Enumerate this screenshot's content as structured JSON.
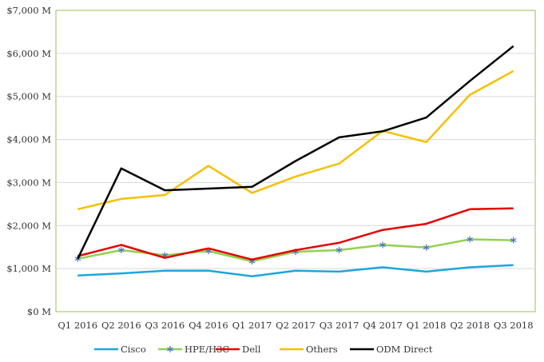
{
  "chart_data": {
    "type": "line",
    "categories": [
      "Q1 2016",
      "Q2 2016",
      "Q3 2016",
      "Q4 2016",
      "Q1 2017",
      "Q2 2017",
      "Q3 2017",
      "Q4 2017",
      "Q1 2018",
      "Q2 2018",
      "Q3 2018"
    ],
    "y_ticks": [
      "$0 M",
      "$1,000 M",
      "$2,000 M",
      "$3,000 M",
      "$4,000 M",
      "$5,000 M",
      "$6,000 M",
      "$7,000 M"
    ],
    "ylim": [
      0,
      7000
    ],
    "grid": "horizontal",
    "legend_position": "bottom",
    "series": [
      {
        "name": "Cisco",
        "color": "#1CA6DF",
        "marker": "none",
        "values": [
          840,
          890,
          950,
          950,
          820,
          950,
          930,
          1030,
          930,
          1030,
          1080
        ]
      },
      {
        "name": "HPE/H3C",
        "color": "#92D050",
        "marker": "asterisk",
        "marker_color": "#4472C4",
        "values": [
          1230,
          1430,
          1310,
          1410,
          1170,
          1390,
          1430,
          1550,
          1490,
          1680,
          1660
        ]
      },
      {
        "name": "Dell",
        "color": "#E60000",
        "marker": "none",
        "values": [
          1290,
          1550,
          1250,
          1470,
          1210,
          1430,
          1600,
          1900,
          2040,
          2380,
          2400
        ]
      },
      {
        "name": "Others",
        "color": "#F5C000",
        "marker": "none",
        "values": [
          2380,
          2620,
          2710,
          3390,
          2760,
          3140,
          3440,
          4200,
          3940,
          5040,
          5590
        ]
      },
      {
        "name": "ODM Direct",
        "color": "#000000",
        "marker": "none",
        "values": [
          1230,
          3330,
          2820,
          2860,
          2900,
          3500,
          4050,
          4190,
          4510,
          5360,
          6170
        ]
      }
    ]
  }
}
